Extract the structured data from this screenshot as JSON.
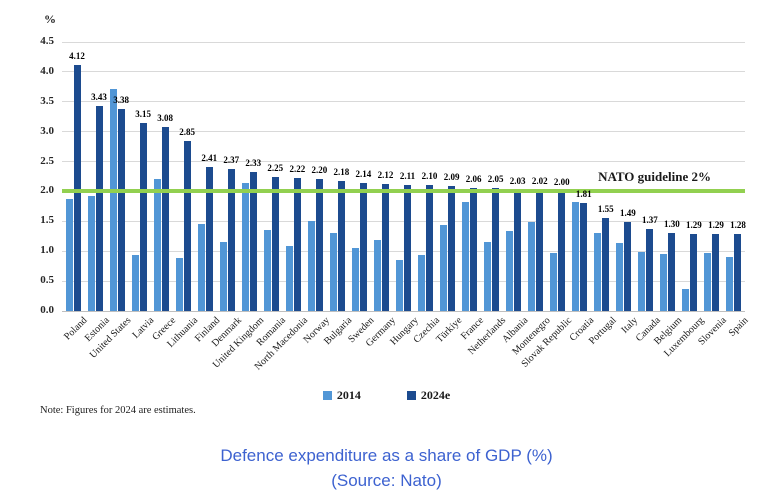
{
  "chart_data": {
    "type": "bar",
    "title": "Defence expenditure as a share of GDP (%)",
    "unit_label": "%",
    "categories": [
      "Poland",
      "Estonia",
      "United States",
      "Latvia",
      "Greece",
      "Lithuania",
      "Finland",
      "Denmark",
      "United Kingdom",
      "Romania",
      "North Macedonia",
      "Norway",
      "Bulgaria",
      "Sweden",
      "Germany",
      "Hungary",
      "Czechia",
      "Türkiye",
      "France",
      "Netherlands",
      "Albania",
      "Montenegro",
      "Slovak Republic",
      "Croatia",
      "Portugal",
      "Italy",
      "Canada",
      "Belgium",
      "Luxembourg",
      "Slovenia",
      "Spain"
    ],
    "series": [
      {
        "name": "2014",
        "color": "#5196D6",
        "values": [
          1.88,
          1.93,
          3.71,
          0.94,
          2.21,
          0.88,
          1.45,
          1.15,
          2.14,
          1.35,
          1.09,
          1.51,
          1.3,
          1.05,
          1.18,
          0.86,
          0.93,
          1.44,
          1.82,
          1.16,
          1.34,
          1.49,
          0.97,
          1.82,
          1.3,
          1.13,
          0.99,
          0.96,
          0.37,
          0.97,
          0.91
        ]
      },
      {
        "name": "2024e",
        "color": "#1C4B8F",
        "values": [
          4.12,
          3.43,
          3.38,
          3.15,
          3.08,
          2.85,
          2.41,
          2.37,
          2.33,
          2.25,
          2.22,
          2.2,
          2.18,
          2.14,
          2.12,
          2.11,
          2.1,
          2.09,
          2.06,
          2.05,
          2.03,
          2.02,
          2.0,
          1.81,
          1.55,
          1.49,
          1.37,
          1.3,
          1.29,
          1.29,
          1.28
        ],
        "labels": [
          "4.12",
          "3.43",
          "3.38",
          "3.15",
          "3.08",
          "2.85",
          "2.41",
          "2.37",
          "2.33",
          "2.25",
          "2.22",
          "2.20",
          "2.18",
          "2.14",
          "2.12",
          "2.11",
          "2.10",
          "2.09",
          "2.06",
          "2.05",
          "2.03",
          "2.02",
          "2.00",
          "1.81",
          "1.55",
          "1.49",
          "1.37",
          "1.30",
          "1.29",
          "1.29",
          "1.28"
        ]
      }
    ],
    "ylim": [
      0,
      4.5
    ],
    "yticks": [
      "0.0",
      "0.5",
      "1.0",
      "1.5",
      "2.0",
      "2.5",
      "3.0",
      "3.5",
      "4.0",
      "4.5"
    ],
    "grid": true,
    "legend_position": "bottom",
    "guideline": {
      "value": 2.0,
      "label": "NATO guideline 2%",
      "color": "#92D050"
    },
    "colors": {
      "gridline": "#d9d9d9",
      "axis": "#bfbfbf"
    }
  },
  "note": "Note: Figures for 2024 are estimates.",
  "caption": {
    "line1": "Defence expenditure as a share of GDP (%)",
    "line2": "(Source: Nato)",
    "color": "#3D62D0"
  }
}
